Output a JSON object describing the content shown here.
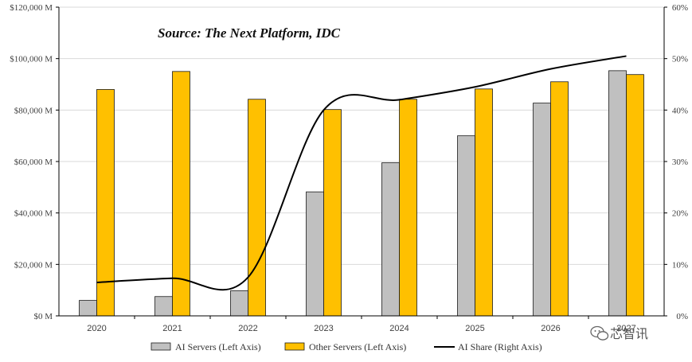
{
  "chart_data": {
    "type": "bar",
    "annotation": "Source: The Next Platform, IDC",
    "categories": [
      "2020",
      "2021",
      "2022",
      "2023",
      "2024",
      "2025",
      "2026",
      "2027"
    ],
    "series": [
      {
        "name": "AI Servers (Left Axis)",
        "kind": "bar",
        "axis": "left",
        "color": "#c0c0c0",
        "values": [
          6000,
          7500,
          9800,
          48200,
          59500,
          70000,
          82700,
          95300
        ]
      },
      {
        "name": "Other Servers (Left Axis)",
        "kind": "bar",
        "axis": "left",
        "color": "#ffc000",
        "values": [
          88000,
          95000,
          84200,
          80200,
          84200,
          88200,
          91000,
          93800
        ]
      },
      {
        "name": "AI Share (Right Axis)",
        "kind": "line",
        "axis": "right",
        "color": "#000000",
        "values": [
          6.5,
          7.3,
          7.5,
          40.0,
          42.0,
          44.5,
          48.0,
          50.5
        ]
      }
    ],
    "left_axis": {
      "ylim": [
        0,
        120000
      ],
      "ticks": [
        0,
        20000,
        40000,
        60000,
        80000,
        100000,
        120000
      ],
      "tick_labels": [
        "$0 M",
        "$20,000 M",
        "$40,000 M",
        "$60,000 M",
        "$80,000 M",
        "$100,000 M",
        "$120,000 M"
      ]
    },
    "right_axis": {
      "ylim": [
        0,
        60
      ],
      "ticks": [
        0,
        10,
        20,
        30,
        40,
        50,
        60
      ],
      "tick_labels": [
        "0%",
        "10%",
        "20%",
        "30%",
        "40%",
        "50%",
        "60%"
      ]
    },
    "grid": true,
    "legend_position": "bottom"
  },
  "watermark": {
    "text": "芯智讯",
    "icon": "wechat-icon"
  }
}
